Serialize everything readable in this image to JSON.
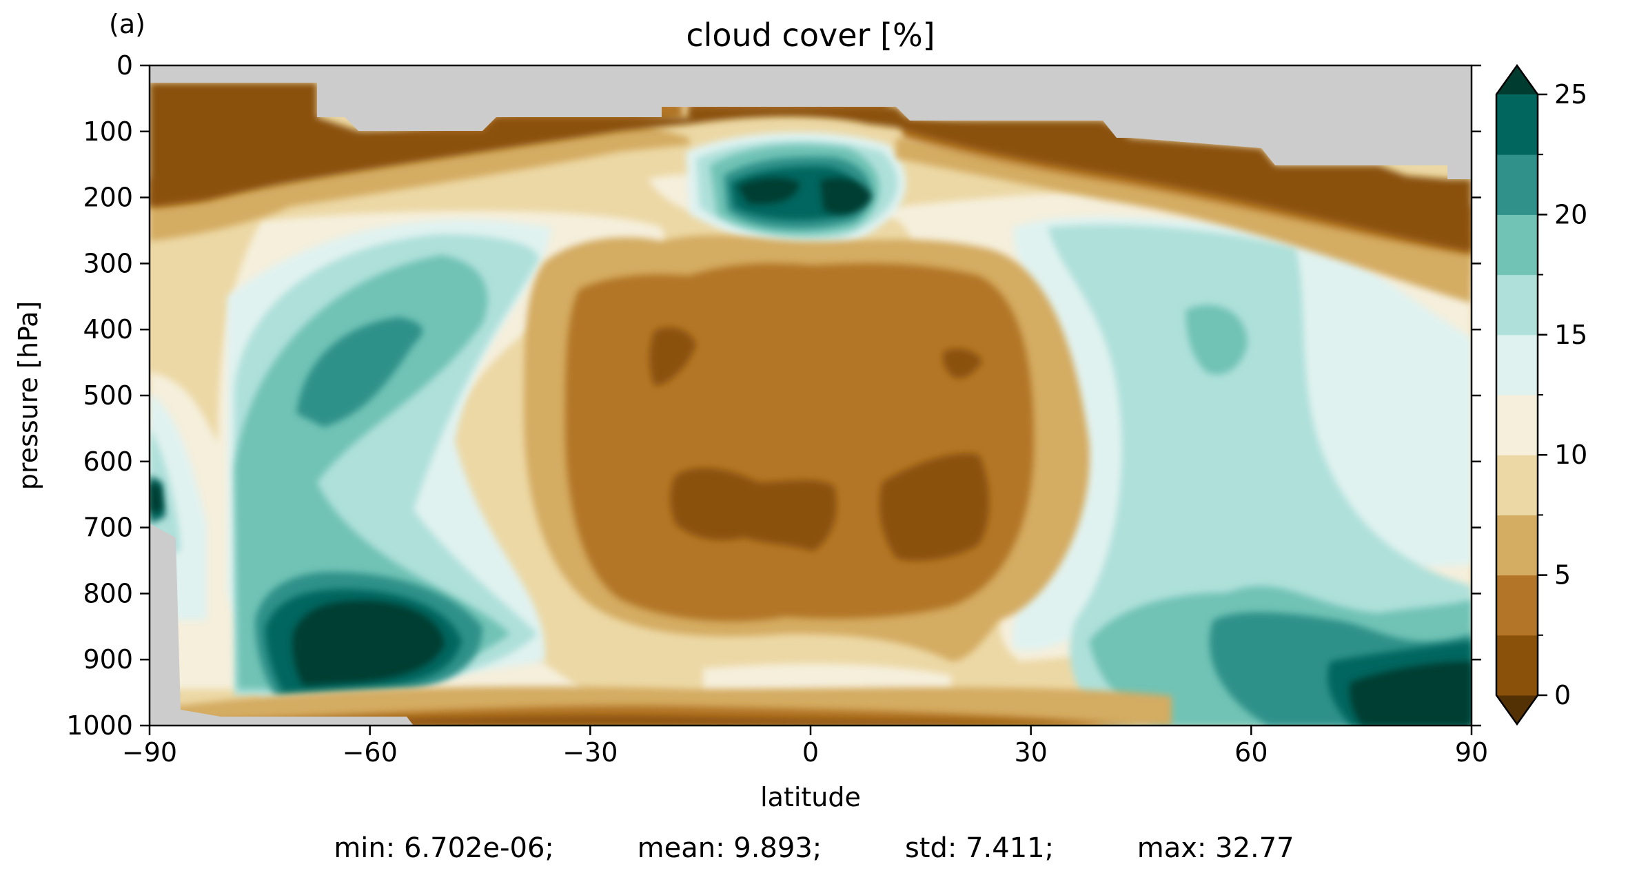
{
  "panel_label": "(a)",
  "stats": {
    "min": "min: 6.702e-06;",
    "mean": "mean: 9.893;",
    "std": "std: 7.411;",
    "max": "max: 32.77"
  },
  "colors": {
    "missing": "#cccccc",
    "levels": [
      "#8a510b",
      "#b37628",
      "#d4ac62",
      "#ecd8a5",
      "#f5efdc",
      "#e0f2f0",
      "#afe0da",
      "#71c3b5",
      "#2f9189",
      "#01665e",
      "#003c30"
    ]
  },
  "chart_data": {
    "type": "heatmap",
    "subtype": "filled contour (latitude–pressure cross-section)",
    "title": "cloud cover [%]",
    "xlabel": "latitude",
    "ylabel": "pressure [hPa]",
    "xlim": [
      -90,
      90
    ],
    "ylim": [
      1000,
      0
    ],
    "x_ticks": [
      "−90",
      "−60",
      "−30",
      "0",
      "30",
      "60",
      "90"
    ],
    "y_ticks": [
      "0",
      "100",
      "200",
      "300",
      "400",
      "500",
      "600",
      "700",
      "800",
      "900",
      "1000"
    ],
    "colorbar": {
      "ticks": [
        "0",
        "5",
        "10",
        "15",
        "20",
        "25"
      ],
      "levels": [
        0,
        2.5,
        5,
        7.5,
        10,
        12.5,
        15,
        17.5,
        20,
        22.5,
        25
      ],
      "extend": "both"
    },
    "features": [
      {
        "name": "tropical upper-tropospheric maximum",
        "lat": 5,
        "pressure": 200,
        "value": 25
      },
      {
        "name": "southern low-level maximum",
        "lat": -60,
        "pressure": 880,
        "value": 25
      },
      {
        "name": "northern low-level maximum",
        "lat": 82,
        "pressure": 950,
        "value": 25
      },
      {
        "name": "tropical mid-tropospheric minimum",
        "lat": 0,
        "pressure": 600,
        "value": 2
      },
      {
        "name": "stratospheric minimum",
        "lat": 0,
        "pressure": 100,
        "value": 0
      }
    ],
    "grid": false,
    "legend": "colorbar right"
  }
}
